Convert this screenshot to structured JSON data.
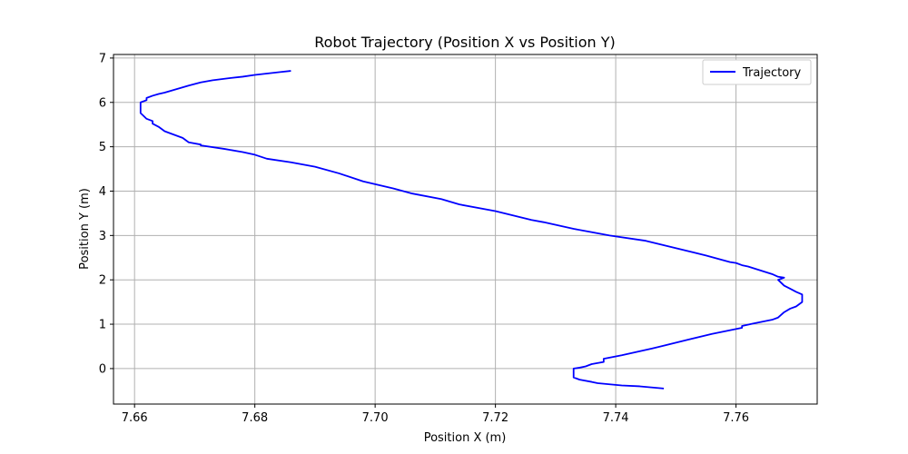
{
  "chart_data": {
    "type": "line",
    "title": "Robot Trajectory (Position X vs Position Y)",
    "xlabel": "Position X (m)",
    "ylabel": "Position Y (m)",
    "xlim": [
      7.6565,
      7.7735
    ],
    "ylim": [
      -0.8,
      7.08
    ],
    "xticks": [
      7.66,
      7.68,
      7.7,
      7.72,
      7.74,
      7.76
    ],
    "xtick_labels": [
      "7.66",
      "7.68",
      "7.70",
      "7.72",
      "7.74",
      "7.76"
    ],
    "yticks": [
      0,
      1,
      2,
      3,
      4,
      5,
      6,
      7
    ],
    "ytick_labels": [
      "0",
      "1",
      "2",
      "3",
      "4",
      "5",
      "6",
      "7"
    ],
    "grid": true,
    "legend_position": "top-right",
    "series": [
      {
        "name": "Trajectory",
        "color": "#0000ff",
        "x": [
          7.748,
          7.744,
          7.741,
          7.737,
          7.736,
          7.734,
          7.733,
          7.733,
          7.734,
          7.735,
          7.736,
          7.738,
          7.738,
          7.741,
          7.746,
          7.752,
          7.756,
          7.761,
          7.761,
          7.763,
          7.766,
          7.767,
          7.768,
          7.769,
          7.77,
          7.771,
          7.771,
          7.77,
          7.769,
          7.768,
          7.767,
          7.768,
          7.767,
          7.766,
          7.762,
          7.761,
          7.76,
          7.759,
          7.755,
          7.745,
          7.739,
          7.733,
          7.728,
          7.726,
          7.72,
          7.714,
          7.711,
          7.706,
          7.703,
          7.698,
          7.694,
          7.69,
          7.686,
          7.682,
          7.68,
          7.678,
          7.675,
          7.671,
          7.671,
          7.669,
          7.668,
          7.666,
          7.665,
          7.664,
          7.663,
          7.663,
          7.662,
          7.661,
          7.661,
          7.662,
          7.662,
          7.663,
          7.664,
          7.665,
          7.667,
          7.669,
          7.671,
          7.673,
          7.676,
          7.678,
          7.68,
          7.682,
          7.684,
          7.686
        ],
        "y": [
          -0.45,
          -0.4,
          -0.38,
          -0.33,
          -0.3,
          -0.25,
          -0.2,
          0.0,
          0.02,
          0.05,
          0.1,
          0.15,
          0.22,
          0.3,
          0.45,
          0.65,
          0.78,
          0.92,
          0.96,
          1.02,
          1.1,
          1.15,
          1.27,
          1.35,
          1.4,
          1.5,
          1.67,
          1.73,
          1.8,
          1.87,
          2.0,
          2.05,
          2.07,
          2.13,
          2.3,
          2.33,
          2.38,
          2.4,
          2.55,
          2.88,
          3.0,
          3.15,
          3.3,
          3.35,
          3.55,
          3.7,
          3.82,
          3.95,
          4.06,
          4.22,
          4.4,
          4.55,
          4.65,
          4.73,
          4.82,
          4.88,
          4.95,
          5.03,
          5.05,
          5.1,
          5.2,
          5.3,
          5.35,
          5.45,
          5.52,
          5.58,
          5.63,
          5.76,
          6.0,
          6.05,
          6.1,
          6.15,
          6.19,
          6.22,
          6.3,
          6.38,
          6.45,
          6.5,
          6.55,
          6.58,
          6.62,
          6.65,
          6.68,
          6.71
        ]
      }
    ]
  }
}
